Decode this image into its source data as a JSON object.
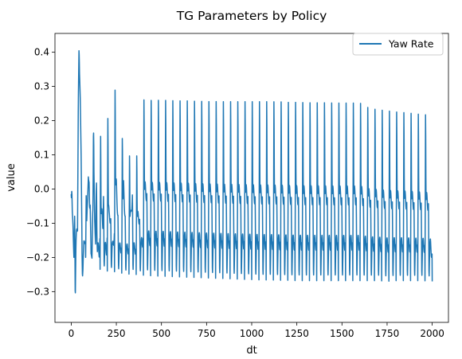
{
  "chart_data": {
    "type": "line",
    "title": "TG Parameters by Policy",
    "xlabel": "dt",
    "ylabel": "value",
    "xlim": [
      -90,
      2090
    ],
    "ylim": [
      -0.39,
      0.455
    ],
    "xticks": [
      0,
      250,
      500,
      750,
      1000,
      1250,
      1500,
      1750,
      2000
    ],
    "xtick_labels": [
      "0",
      "250",
      "500",
      "750",
      "1000",
      "1250",
      "1500",
      "1750",
      "2000"
    ],
    "yticks": [
      -0.3,
      -0.2,
      -0.1,
      0.0,
      0.1,
      0.2,
      0.3,
      0.4
    ],
    "ytick_labels": [
      "−0.3",
      "−0.2",
      "−0.1",
      "0.0",
      "0.1",
      "0.2",
      "0.3",
      "0.4"
    ],
    "grid": false,
    "legend_position": "top-right",
    "series": [
      {
        "name": "Yaw Rate",
        "color": "#1f77b4",
        "x": [
          0,
          5,
          10,
          15,
          20,
          25,
          30,
          35,
          40,
          45,
          50,
          55,
          60,
          65,
          70,
          75,
          80,
          85,
          90,
          95,
          100,
          105,
          110,
          115,
          120,
          125,
          130,
          135,
          140,
          145,
          150,
          155,
          160,
          165,
          170,
          175,
          180,
          185,
          190,
          195,
          200,
          210,
          220,
          230,
          240,
          250,
          260,
          270,
          280,
          290,
          300,
          310,
          320,
          330,
          340,
          350,
          360,
          380,
          400,
          450,
          500,
          550,
          600,
          650,
          700,
          750,
          800,
          850,
          900,
          950,
          1000,
          1050,
          1100,
          1150,
          1200,
          1250,
          1300,
          1350,
          1400,
          1450,
          1500,
          1550,
          1600,
          1650,
          1700,
          1750,
          1800,
          1850,
          1900,
          1950,
          1990,
          2000
        ],
        "upper": [
          -0.015,
          0.005,
          0.02,
          -0.2,
          0.35,
          0.36,
          0.3,
          0.28,
          0.4,
          0.42,
          0.335,
          0.24,
          -0.05,
          -0.07,
          0.0,
          0.025,
          -0.02,
          0.0,
          0.11,
          0.175,
          0.11,
          0.04,
          -0.06,
          -0.06,
          0.03,
          0.26,
          0.05,
          -0.06,
          0.17,
          0.13,
          0.06,
          -0.04,
          0.27,
          0.12,
          0.12,
          0.06,
          0.3,
          0.12,
          0.11,
          0.05,
          0.29,
          0.11,
          0.11,
          0.12,
          0.335,
          0.3,
          0.12,
          0.12,
          0.12,
          0.3,
          0.12,
          0.12,
          0.12,
          0.12,
          0.3,
          0.12,
          0.12,
          0.12,
          0.295,
          0.293,
          0.294,
          0.293,
          0.292,
          0.292,
          0.291,
          0.29,
          0.29,
          0.29,
          0.29,
          0.29,
          0.29,
          0.29,
          0.29,
          0.29,
          0.288,
          0.288,
          0.287,
          0.287,
          0.287,
          0.286,
          0.286,
          0.286,
          0.286,
          0.27,
          0.265,
          0.262,
          0.258,
          0.256,
          0.253,
          0.25,
          0.248,
          0.115
        ],
        "lower": [
          -0.015,
          -0.1,
          -0.235,
          -0.2,
          -0.36,
          -0.3,
          -0.25,
          -0.2,
          0.28,
          0.3,
          0.2,
          0.0,
          -0.26,
          -0.26,
          -0.2,
          -0.19,
          -0.2,
          -0.19,
          -0.19,
          -0.06,
          -0.06,
          -0.06,
          -0.23,
          -0.23,
          -0.06,
          -0.06,
          -0.23,
          -0.23,
          -0.06,
          -0.23,
          -0.23,
          -0.23,
          -0.235,
          -0.235,
          -0.235,
          -0.235,
          -0.235,
          -0.24,
          -0.24,
          -0.24,
          -0.24,
          -0.24,
          -0.24,
          -0.24,
          -0.242,
          -0.244,
          -0.244,
          -0.245,
          -0.246,
          -0.247,
          -0.248,
          -0.249,
          -0.249,
          -0.25,
          -0.25,
          -0.25,
          -0.25,
          -0.251,
          -0.252,
          -0.254,
          -0.255,
          -0.256,
          -0.257,
          -0.258,
          -0.259,
          -0.26,
          -0.261,
          -0.262,
          -0.263,
          -0.264,
          -0.265,
          -0.266,
          -0.266,
          -0.267,
          -0.267,
          -0.268,
          -0.268,
          -0.268,
          -0.268,
          -0.268,
          -0.268,
          -0.268,
          -0.268,
          -0.268,
          -0.268,
          -0.27,
          -0.268,
          -0.268,
          -0.268,
          -0.268,
          -0.27,
          -0.27
        ]
      }
    ]
  }
}
